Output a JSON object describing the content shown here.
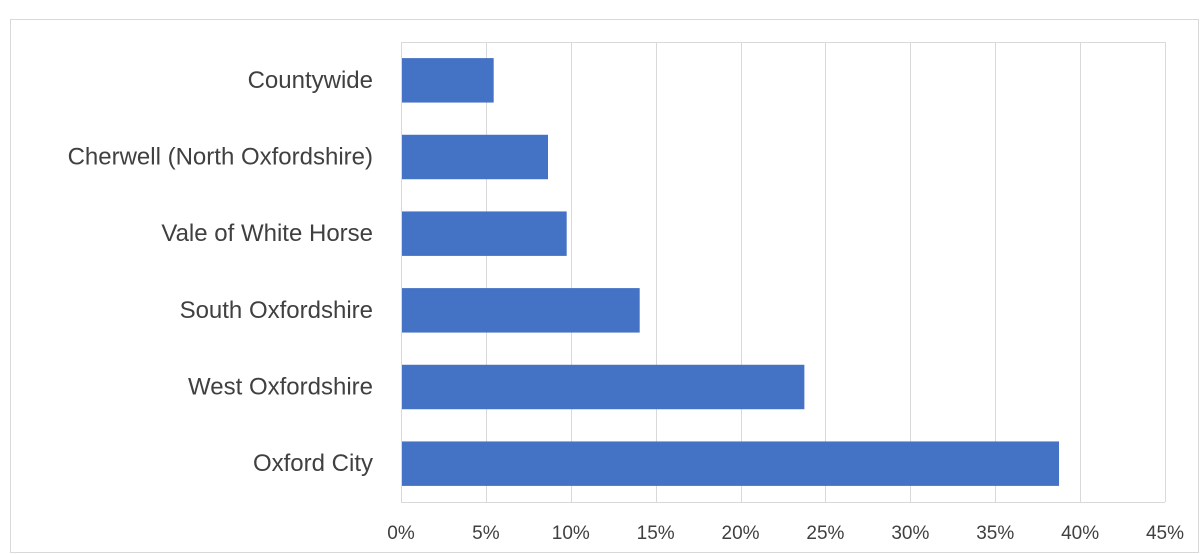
{
  "chart_data": {
    "type": "bar",
    "orientation": "horizontal",
    "title": "",
    "xlabel": "",
    "ylabel": "",
    "categories": [
      "Countywide",
      "Cherwell (North Oxfordshire)",
      "Vale of White Horse",
      "South Oxfordshire",
      "West Oxfordshire",
      "Oxford City"
    ],
    "values": [
      5.4,
      8.6,
      9.7,
      14.0,
      23.7,
      38.7
    ],
    "xlim": [
      0,
      45
    ],
    "x_ticks": [
      0,
      5,
      10,
      15,
      20,
      25,
      30,
      35,
      40,
      45
    ],
    "tick_labels": [
      "0%",
      "5%",
      "10%",
      "15%",
      "20%",
      "25%",
      "30%",
      "35%",
      "40%",
      "45%"
    ],
    "grid": true,
    "legend": "none",
    "colors": {
      "bar": "#4472c4",
      "grid": "#d9d9d9",
      "text": "#404040"
    }
  }
}
